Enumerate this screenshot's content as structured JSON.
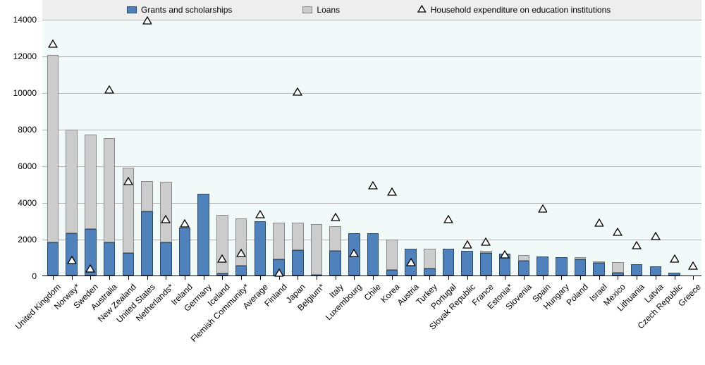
{
  "legend": {
    "grants_label": "Grants and scholarships",
    "loans_label": "Loans",
    "household_label": "Household expenditure on education institutions"
  },
  "chart": {
    "type": "stacked-bar-with-markers",
    "ylim": [
      0,
      14000
    ],
    "ytick_step": 2000,
    "yticks": [
      0,
      2000,
      4000,
      6000,
      8000,
      10000,
      12000,
      14000
    ],
    "colors": {
      "grants": "#4f81bd",
      "loans": "#cccccc",
      "marker_stroke": "#000000",
      "marker_fill": "#ffffff",
      "plot_bg": "#f2f9f9",
      "legend_bg": "#eeeeee",
      "grid": "#b0b0b0",
      "bar_border": "#2e4a6b"
    },
    "marker_size": 12,
    "bar_width_ratio": 0.62,
    "categories": [
      {
        "label": "United Kingdom",
        "grants": 1800,
        "loans": 10250,
        "household": 12600
      },
      {
        "label": "Norway*",
        "grants": 2300,
        "loans": 5650,
        "household": 800
      },
      {
        "label": "Sweden",
        "grants": 2550,
        "loans": 5150,
        "household": 350
      },
      {
        "label": "Australia",
        "grants": 1800,
        "loans": 5700,
        "household": 10100
      },
      {
        "label": "New Zealand",
        "grants": 1250,
        "loans": 4650,
        "household": 5100
      },
      {
        "label": "United States",
        "grants": 3500,
        "loans": 1650,
        "household": 13900
      },
      {
        "label": "Netherlands*",
        "grants": 1800,
        "loans": 3300,
        "household": 3050
      },
      {
        "label": "Ireland",
        "grants": 2600,
        "loans": 0,
        "household": 2800
      },
      {
        "label": "Germany",
        "grants": 4450,
        "loans": 0,
        "household": null
      },
      {
        "label": "Iceland",
        "grants": 100,
        "loans": 3200,
        "household": 900
      },
      {
        "label": "Flemish Community*",
        "grants": 550,
        "loans": 2550,
        "household": 1200
      },
      {
        "label": "Average",
        "grants": 2950,
        "loans": 0,
        "household": 3300
      },
      {
        "label": "Finland",
        "grants": 900,
        "loans": 2000,
        "household": 100
      },
      {
        "label": "Japan",
        "grants": 1400,
        "loans": 1500,
        "household": 10000
      },
      {
        "label": "Belgium*",
        "grants": 50,
        "loans": 2750,
        "household": null
      },
      {
        "label": "Italy",
        "grants": 1350,
        "loans": 1350,
        "household": 3150
      },
      {
        "label": "Luxembourg",
        "grants": 2300,
        "loans": 0,
        "household": 1200
      },
      {
        "label": "Chile",
        "grants": 2300,
        "loans": 0,
        "household": 4900
      },
      {
        "label": "Korea",
        "grants": 300,
        "loans": 1650,
        "household": 4550
      },
      {
        "label": "Austria",
        "grants": 1450,
        "loans": 0,
        "household": 700
      },
      {
        "label": "Turkey",
        "grants": 400,
        "loans": 1050,
        "household": null
      },
      {
        "label": "Portugal",
        "grants": 1450,
        "loans": 0,
        "household": 3050
      },
      {
        "label": "Slovak Republic",
        "grants": 1350,
        "loans": 0,
        "household": 1650
      },
      {
        "label": "France",
        "grants": 1250,
        "loans": 80,
        "household": 1800
      },
      {
        "label": "Estonia*",
        "grants": 1200,
        "loans": 0,
        "household": 1100
      },
      {
        "label": "Slovenia",
        "grants": 800,
        "loans": 300,
        "household": null
      },
      {
        "label": "Spain",
        "grants": 1050,
        "loans": 0,
        "household": 3600
      },
      {
        "label": "Hungary",
        "grants": 1000,
        "loans": 0,
        "household": null
      },
      {
        "label": "Poland",
        "grants": 900,
        "loans": 100,
        "household": null
      },
      {
        "label": "Israel",
        "grants": 700,
        "loans": 50,
        "household": 2850
      },
      {
        "label": "Mexico",
        "grants": 150,
        "loans": 600,
        "household": 2350
      },
      {
        "label": "Lithuania",
        "grants": 600,
        "loans": 0,
        "household": 1600
      },
      {
        "label": "Latvia",
        "grants": 500,
        "loans": 0,
        "household": 2100
      },
      {
        "label": "Czech Republic",
        "grants": 150,
        "loans": 0,
        "household": 900
      },
      {
        "label": "Greece",
        "grants": 0,
        "loans": 0,
        "household": 500
      }
    ]
  }
}
